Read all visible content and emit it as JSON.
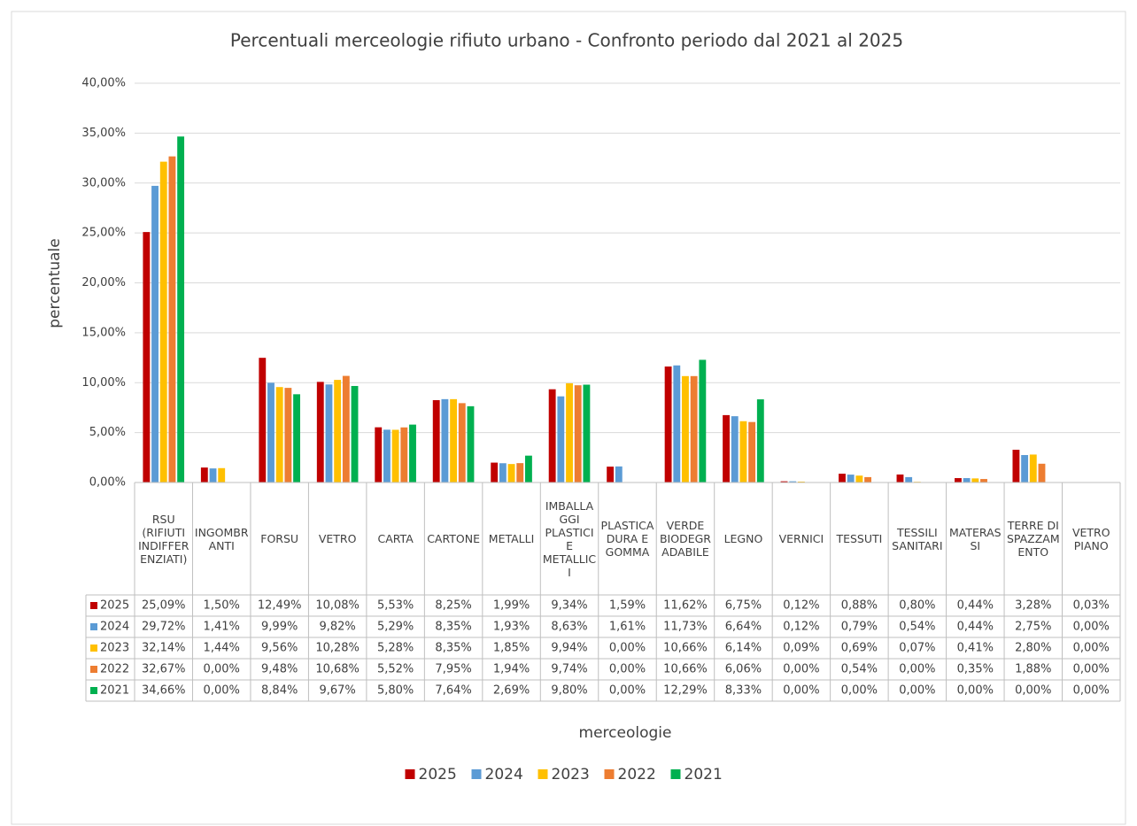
{
  "chart_data": {
    "type": "bar",
    "title": "Percentuali merceologie rifiuto urbano - Confronto periodo dal 2021 al 2025",
    "y_label": "percentuale",
    "x_label": "merceologie",
    "categories": [
      "RSU (RIFIUTI INDIFFERENZIATI)",
      "INGOMBRANTI",
      "FORSU",
      "VETRO",
      "CARTA",
      "CARTONE",
      "METALLI",
      "IMBALLAGGI PLASTICI E METALLICI",
      "PLASTICA DURA E GOMMA",
      "VERDE BIODEGRADABILE",
      "LEGNO",
      "VERNICI",
      "TESSUTI",
      "TESSILI SANITARI",
      "MATERASSI",
      "TERRE DI SPAZZAMENTO",
      "VETRO PIANO"
    ],
    "series": [
      {
        "name": "2025",
        "color": "#c00000",
        "values": [
          25.09,
          1.5,
          12.49,
          10.08,
          5.53,
          8.25,
          1.99,
          9.34,
          1.59,
          11.62,
          6.75,
          0.12,
          0.88,
          0.8,
          0.44,
          3.28,
          0.03
        ],
        "value_labels": [
          "25,09%",
          "1,50%",
          "12,49%",
          "10,08%",
          "5,53%",
          "8,25%",
          "1,99%",
          "9,34%",
          "1,59%",
          "11,62%",
          "6,75%",
          "0,12%",
          "0,88%",
          "0,80%",
          "0,44%",
          "3,28%",
          "0,03%"
        ]
      },
      {
        "name": "2024",
        "color": "#5b9bd5",
        "values": [
          29.72,
          1.41,
          9.99,
          9.82,
          5.29,
          8.35,
          1.93,
          8.63,
          1.61,
          11.73,
          6.64,
          0.12,
          0.79,
          0.54,
          0.44,
          2.75,
          0
        ],
        "value_labels": [
          "29,72%",
          "1,41%",
          "9,99%",
          "9,82%",
          "5,29%",
          "8,35%",
          "1,93%",
          "8,63%",
          "1,61%",
          "11,73%",
          "6,64%",
          "0,12%",
          "0,79%",
          "0,54%",
          "0,44%",
          "2,75%",
          "0,00%"
        ]
      },
      {
        "name": "2023",
        "color": "#ffc000",
        "values": [
          32.14,
          1.44,
          9.56,
          10.28,
          5.28,
          8.35,
          1.85,
          9.94,
          0,
          10.66,
          6.14,
          0.09,
          0.69,
          0.07,
          0.41,
          2.8,
          0
        ],
        "value_labels": [
          "32,14%",
          "1,44%",
          "9,56%",
          "10,28%",
          "5,28%",
          "8,35%",
          "1,85%",
          "9,94%",
          "0,00%",
          "10,66%",
          "6,14%",
          "0,09%",
          "0,69%",
          "0,07%",
          "0,41%",
          "2,80%",
          "0,00%"
        ]
      },
      {
        "name": "2022",
        "color": "#ed7d31",
        "values": [
          32.67,
          0,
          9.48,
          10.68,
          5.52,
          7.95,
          1.94,
          9.74,
          0,
          10.66,
          6.06,
          0,
          0.54,
          0,
          0.35,
          1.88,
          0
        ],
        "value_labels": [
          "32,67%",
          "0,00%",
          "9,48%",
          "10,68%",
          "5,52%",
          "7,95%",
          "1,94%",
          "9,74%",
          "0,00%",
          "10,66%",
          "6,06%",
          "0,00%",
          "0,54%",
          "0,00%",
          "0,35%",
          "1,88%",
          "0,00%"
        ]
      },
      {
        "name": "2021",
        "color": "#00b050",
        "values": [
          34.66,
          0,
          8.84,
          9.67,
          5.8,
          7.64,
          2.69,
          9.8,
          0,
          12.29,
          8.33,
          0,
          0,
          0,
          0,
          0,
          0
        ],
        "value_labels": [
          "34,66%",
          "0,00%",
          "8,84%",
          "9,67%",
          "5,80%",
          "7,64%",
          "2,69%",
          "9,80%",
          "0,00%",
          "12,29%",
          "8,33%",
          "0,00%",
          "0,00%",
          "0,00%",
          "0,00%",
          "0,00%",
          "0,00%"
        ]
      }
    ],
    "ylim": [
      0,
      40
    ],
    "yticks": [
      {
        "value": 0,
        "label": "0,00%"
      },
      {
        "value": 5,
        "label": "5,00%"
      },
      {
        "value": 10,
        "label": "10,00%"
      },
      {
        "value": 15,
        "label": "15,00%"
      },
      {
        "value": 20,
        "label": "20,00%"
      },
      {
        "value": 25,
        "label": "25,00%"
      },
      {
        "value": 30,
        "label": "30,00%"
      },
      {
        "value": 35,
        "label": "35,00%"
      },
      {
        "value": 40,
        "label": "40,00%"
      }
    ],
    "grid": true,
    "legend": "bottom"
  }
}
